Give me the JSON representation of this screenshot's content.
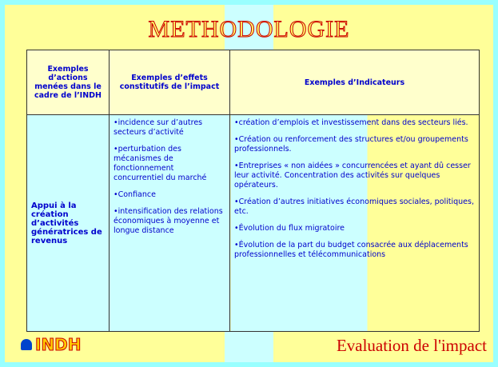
{
  "header": {
    "title": "METHODOLOGIE"
  },
  "table": {
    "headers": [
      "Exemples d’actions menées dans le cadre de l’INDH",
      "Exemples d’effets constitutifs de l’impact",
      "Exemples d’Indicateurs"
    ],
    "rows": [
      [
        "Appui à la création d’activités génératrices de revenus",
        [
          "incidence sur d’autres secteurs d’activité",
          "perturbation des mécanismes de fonctionnement concurrentiel du marché",
          "Confiance",
          "intensification des relations économiques à moyenne et longue distance"
        ],
        [
          "création d’emplois et investissement dans des secteurs liés.",
          "Création ou renforcement des structures et/ou groupements professionnels.",
          "Entreprises « non aidées » concurrencées et ayant dû cesser leur activité. Concentration des activités sur quelques opérateurs.",
          "Création d’autres initiatives économiques sociales, politiques, etc.",
          "Évolution du flux migratoire",
          "Évolution de la part du budget consacrée aux déplacements professionnelles et télécommunications"
        ]
      ]
    ]
  },
  "footer": {
    "logo": "INDH",
    "caption": "Evaluation de l'impact"
  }
}
